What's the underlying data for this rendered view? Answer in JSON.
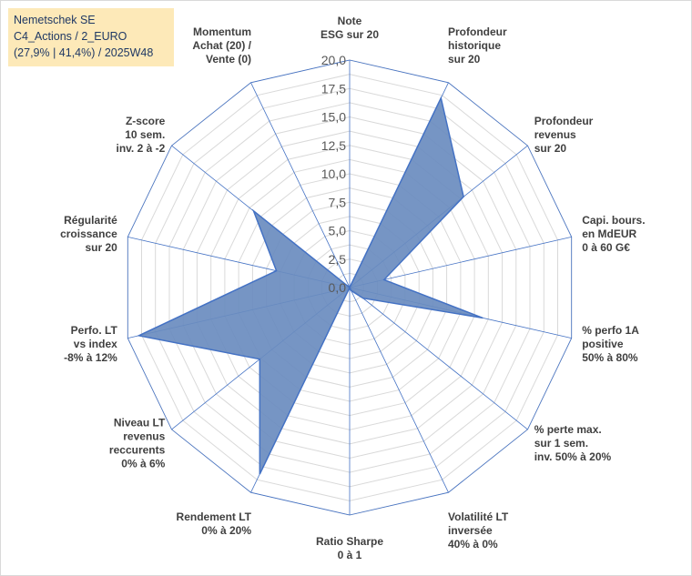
{
  "title_box": {
    "line1": "Nemetschek SE",
    "line2": "C4_Actions / 2_EURO",
    "line3": "(27,9% | 41,4%) / 2025W48"
  },
  "chart_data": {
    "type": "radar",
    "r_min": 0,
    "r_max": 20,
    "tick_labels": [
      "0,0",
      "2,5",
      "5,0",
      "7,5",
      "10,0",
      "12,5",
      "15,0",
      "17,5",
      "20,0"
    ],
    "axes": [
      [
        "Note",
        "ESG sur 20"
      ],
      [
        "Profondeur",
        "historique",
        "sur 20"
      ],
      [
        "Profondeur",
        "revenus",
        "sur 20"
      ],
      [
        "Capi. bours.",
        "en MdEUR",
        "0 à 60 G€"
      ],
      [
        "% perfo 1A",
        "positive",
        "50% à 80%"
      ],
      [
        "% perte max.",
        "sur 1 sem.",
        "inv. 50% à 20%"
      ],
      [
        "Volatilité LT",
        "inversée",
        "40% à 0%"
      ],
      [
        "Ratio Sharpe",
        "0 à 1"
      ],
      [
        "Rendement LT",
        "0% à 20%"
      ],
      [
        "Niveau LT",
        "revenus",
        "reccurents",
        "0% à 6%"
      ],
      [
        "Perfo. LT",
        "vs index",
        "-8% à 12%"
      ],
      [
        "Régularité",
        "croissance",
        "sur 20"
      ],
      [
        "Z-score",
        "10 sem.",
        "inv. 2 à -2"
      ],
      [
        "Momentum",
        "Achat (20) /",
        "Vente (0)"
      ]
    ],
    "values": [
      0,
      18.5,
      12.8,
      3.1,
      12.0,
      1.5,
      0.3,
      0,
      18.2,
      10.1,
      19.0,
      6.6,
      10.8,
      0
    ],
    "grid": true,
    "fill_color": "#6a8cbf",
    "line_color": "#4472c4",
    "grid_color": "#d9d9d9",
    "spoke_color": "#4472c4"
  }
}
